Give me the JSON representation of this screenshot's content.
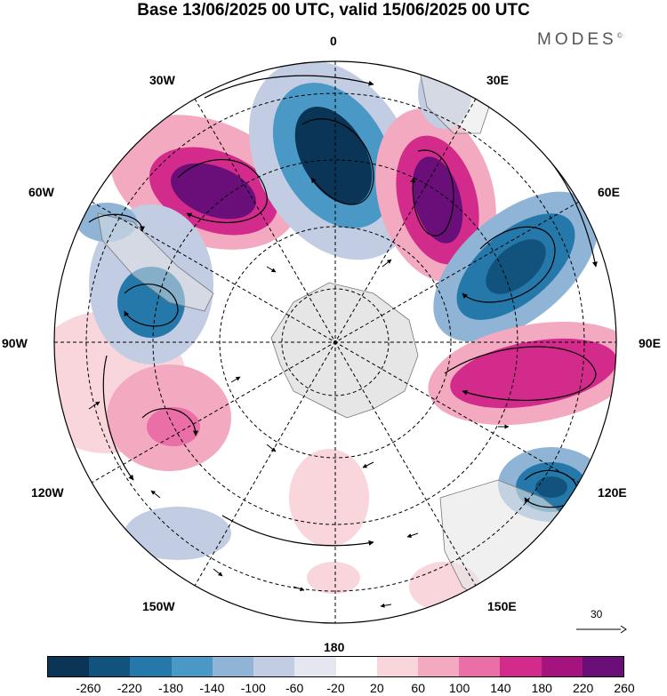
{
  "title": "Base 13/06/2025 00 UTC, valid 15/06/2025 00 UTC",
  "brand": "MODES",
  "brand_mark": "©",
  "map": {
    "projection": "south polar stereographic",
    "longitude_labels": {
      "lon_0": "0",
      "lon_30e": "30E",
      "lon_60e": "60E",
      "lon_90e": "90E",
      "lon_120e": "120E",
      "lon_150e": "150E",
      "lon_180": "180",
      "lon_150w": "150W",
      "lon_120w": "120W",
      "lon_90w": "90W",
      "lon_60w": "60W",
      "lon_30w": "30W"
    },
    "vector_scale_label": "30",
    "colors": {
      "continent_fill": "#e6e6e6",
      "graticule": "#000000"
    }
  },
  "colorbar": {
    "colors": [
      "#0b3556",
      "#12537e",
      "#2479aa",
      "#4a98c6",
      "#8fb4d6",
      "#c2cde3",
      "#e4e6f0",
      "#ffffff",
      "#f8d6dc",
      "#f3a9bf",
      "#ea6fa6",
      "#d22b8c",
      "#a5137f",
      "#6a0f7a"
    ],
    "tick_labels": [
      "-260",
      "-220",
      "-180",
      "-140",
      "-100",
      "-60",
      "-20",
      "20",
      "60",
      "100",
      "140",
      "180",
      "220",
      "260"
    ]
  }
}
